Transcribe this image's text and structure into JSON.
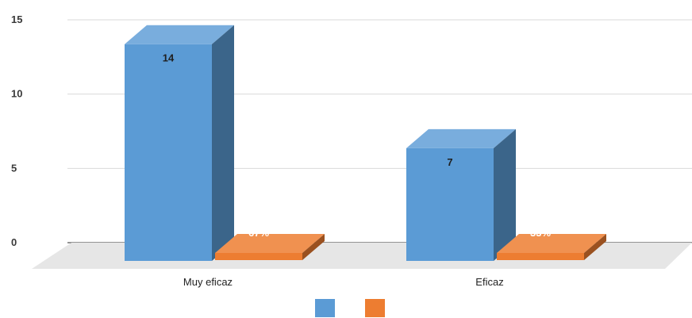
{
  "chart_data": {
    "type": "bar",
    "categories": [
      "Muy eficaz",
      "Eficaz"
    ],
    "series": [
      {
        "values": [
          14,
          7
        ],
        "data_labels": [
          "14",
          "7"
        ],
        "color": "#5b9bd5"
      },
      {
        "values": [
          0.67,
          0.33
        ],
        "data_labels": [
          "67%",
          "33%"
        ],
        "color": "#ed7d31"
      }
    ],
    "y_ticks": [
      "0",
      "5",
      "10",
      "15"
    ],
    "ylim": [
      0,
      15
    ],
    "grid": true,
    "legend_position": "bottom",
    "style": "3d"
  }
}
